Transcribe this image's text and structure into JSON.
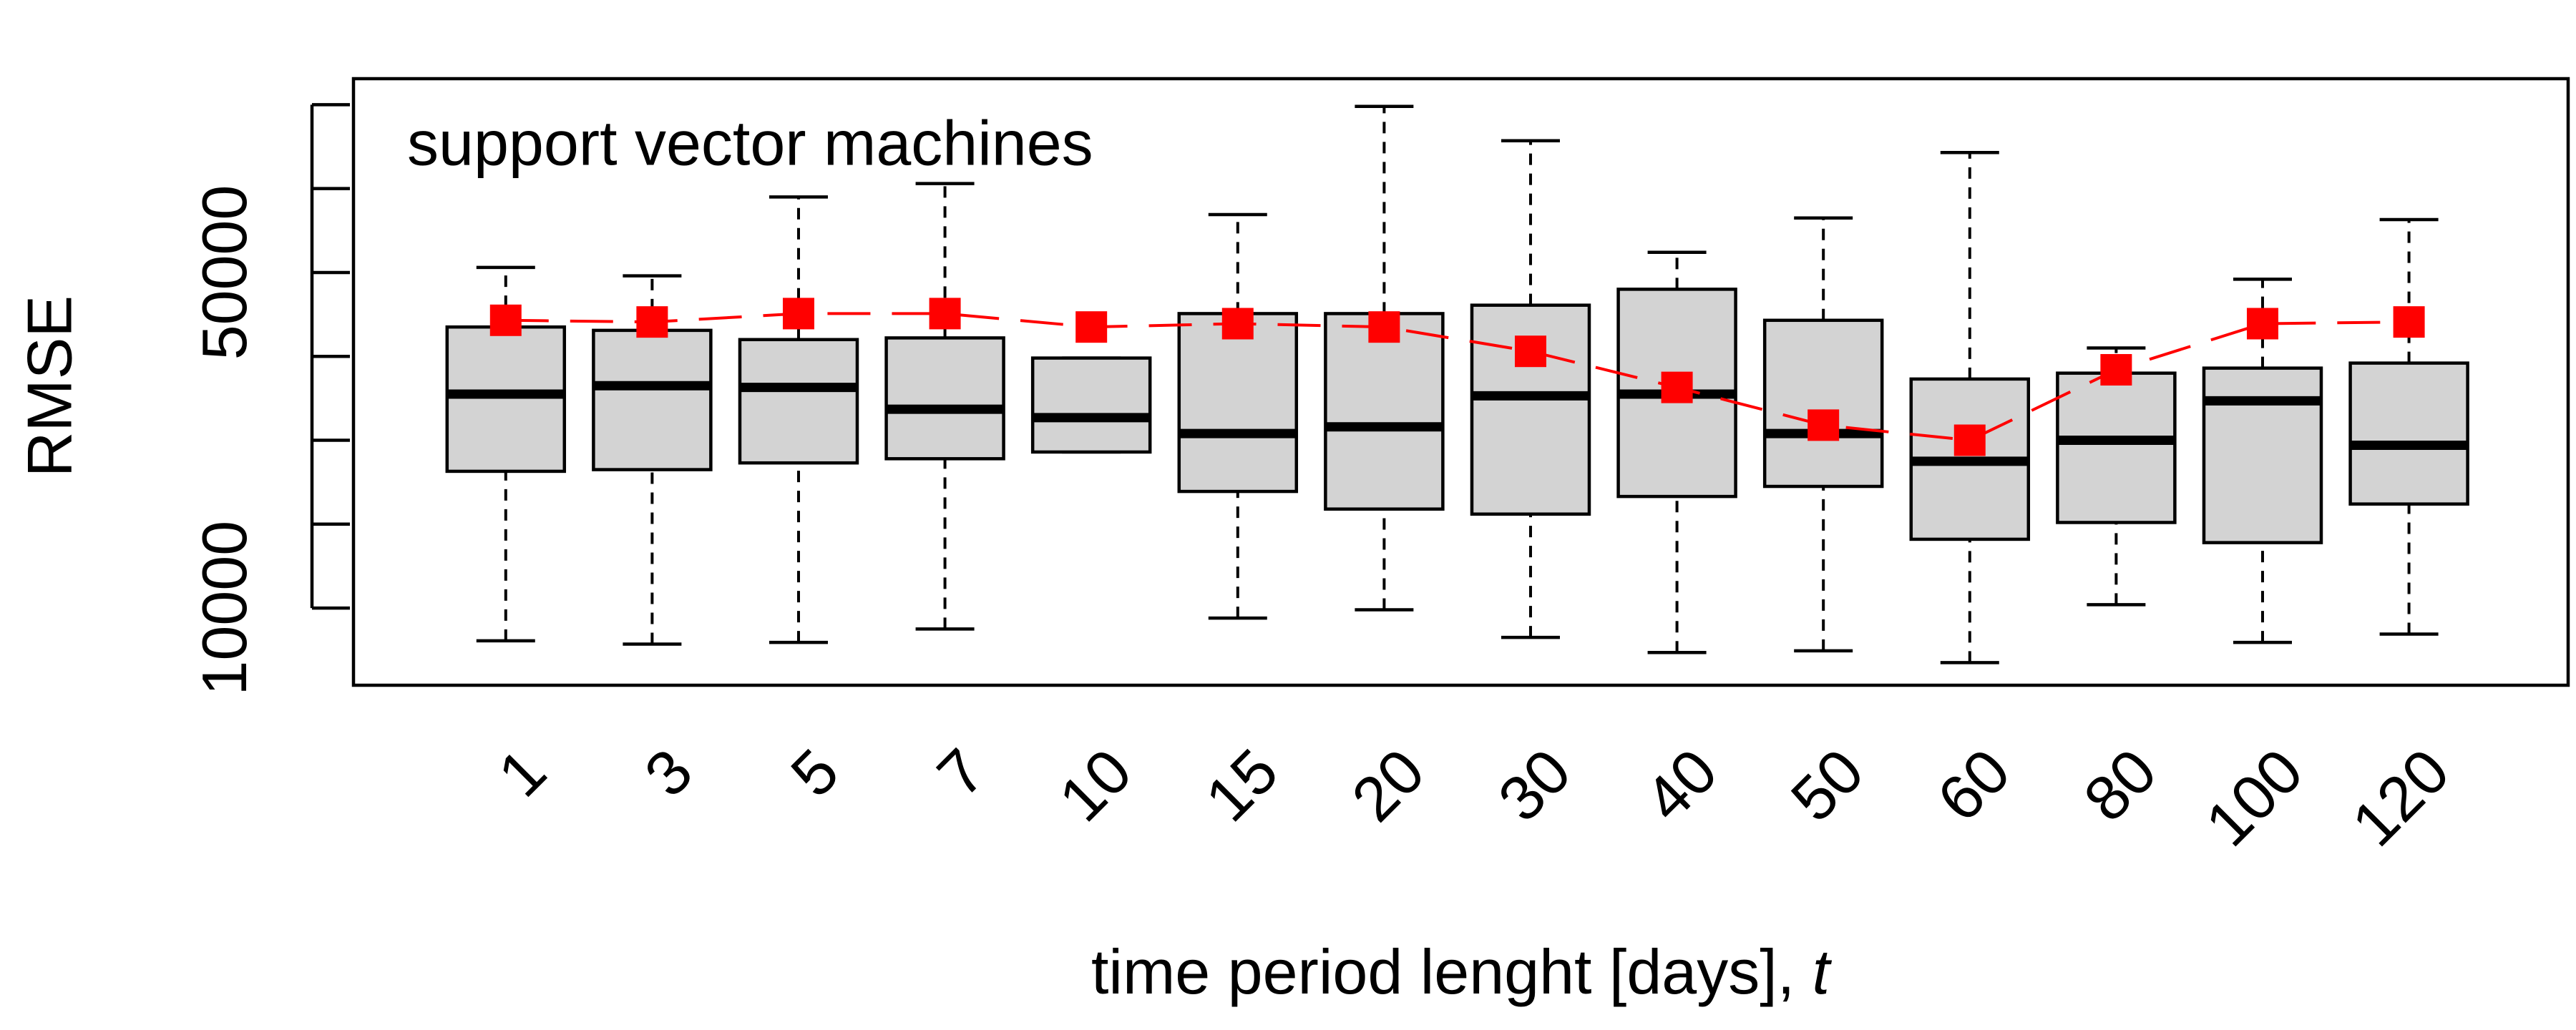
{
  "chart_data": {
    "type": "box",
    "annotation": "support vector machines",
    "ylabel": "RMSE",
    "xlabel": "time period lenght [days], ",
    "xlabel_var": "t",
    "categories": [
      "1",
      "3",
      "5",
      "7",
      "10",
      "15",
      "20",
      "30",
      "40",
      "50",
      "60",
      "80",
      "100",
      "120"
    ],
    "boxes": [
      {
        "whislo": 6100,
        "q1": 26300,
        "med": 35500,
        "q3": 43500,
        "whishi": 50600
      },
      {
        "whislo": 5700,
        "q1": 26500,
        "med": 36500,
        "q3": 43100,
        "whishi": 49600
      },
      {
        "whislo": 5900,
        "q1": 27300,
        "med": 36300,
        "q3": 42000,
        "whishi": 59000
      },
      {
        "whislo": 7500,
        "q1": 27800,
        "med": 33700,
        "q3": 42200,
        "whishi": 60600
      },
      {
        "whislo": 28600,
        "q1": 28600,
        "med": 32700,
        "q3": 39800,
        "whishi": 39800
      },
      {
        "whislo": 8800,
        "q1": 23900,
        "med": 30800,
        "q3": 45100,
        "whishi": 56900
      },
      {
        "whislo": 9800,
        "q1": 21800,
        "med": 31600,
        "q3": 45100,
        "whishi": 69800
      },
      {
        "whislo": 6500,
        "q1": 21200,
        "med": 35300,
        "q3": 46100,
        "whishi": 65700
      },
      {
        "whislo": 4700,
        "q1": 23300,
        "med": 35500,
        "q3": 48000,
        "whishi": 52400
      },
      {
        "whislo": 4900,
        "q1": 24500,
        "med": 30800,
        "q3": 44300,
        "whishi": 56500
      },
      {
        "whislo": 3500,
        "q1": 18200,
        "med": 27500,
        "q3": 37300,
        "whishi": 64300
      },
      {
        "whislo": 10400,
        "q1": 20200,
        "med": 30000,
        "q3": 38000,
        "whishi": 41000
      },
      {
        "whislo": 5900,
        "q1": 17800,
        "med": 34700,
        "q3": 38600,
        "whishi": 49200
      },
      {
        "whislo": 6900,
        "q1": 22400,
        "med": 29400,
        "q3": 39200,
        "whishi": 56300
      }
    ],
    "means": [
      44300,
      44100,
      45100,
      45100,
      43500,
      43900,
      43500,
      40600,
      36300,
      31800,
      30000,
      38400,
      43900,
      44100
    ],
    "box_color": "#d3d3d3",
    "mean_color": "#ff0000",
    "ylim": [
      800,
      73100
    ],
    "yticks": [
      10000,
      50000
    ],
    "minor_yticks": [
      20000,
      30000,
      40000,
      60000,
      70000
    ]
  }
}
